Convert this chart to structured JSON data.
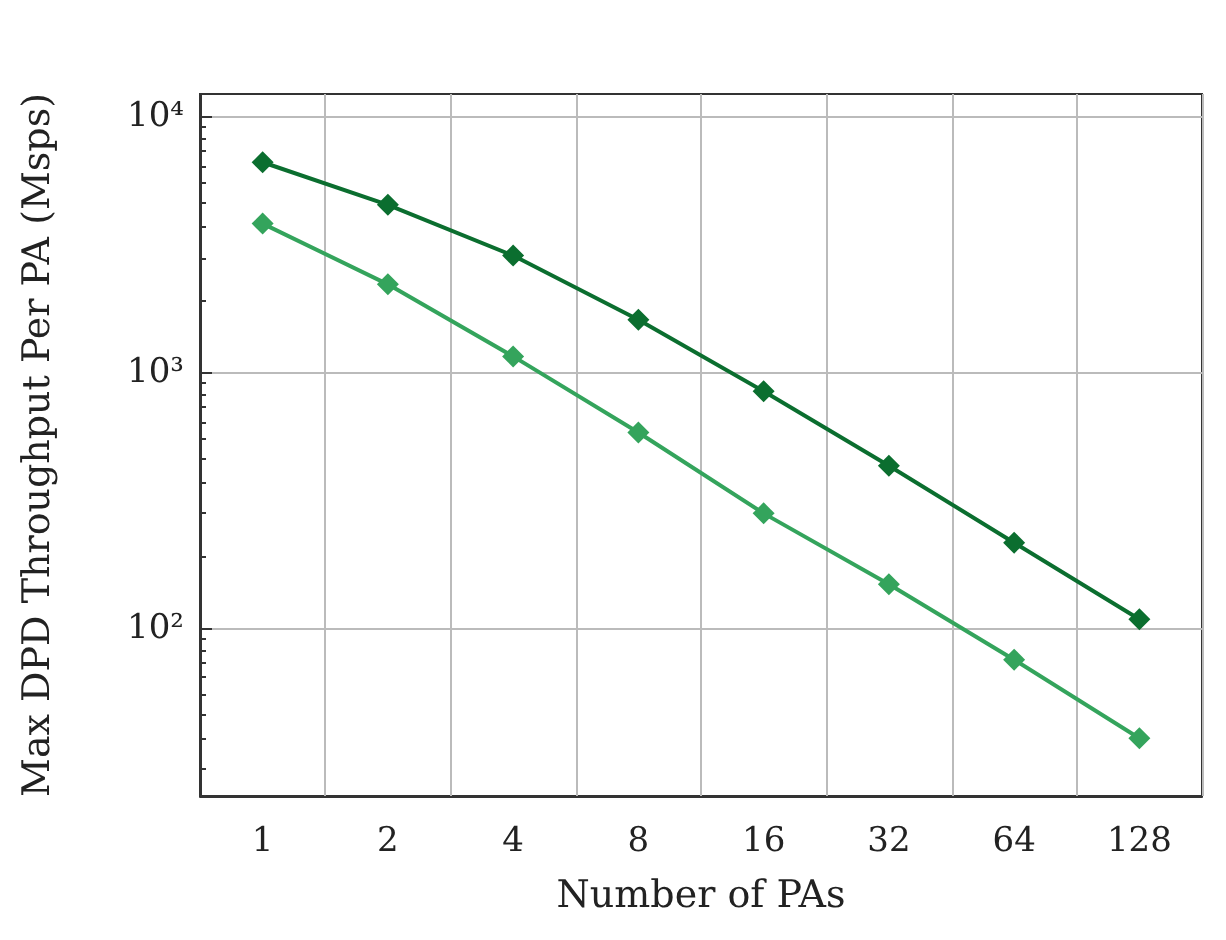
{
  "chart_data": {
    "type": "line",
    "xlabel": "Number of PAs",
    "ylabel": "Max DPD Throughput Per PA (Msps)",
    "categories": [
      "1",
      "2",
      "4",
      "8",
      "16",
      "32",
      "64",
      "128"
    ],
    "series": [
      {
        "color": "#0b6e2f",
        "values": [
          6600,
          4500,
          2850,
          1600,
          840,
          430,
          215,
          108
        ]
      },
      {
        "color": "#34a45c",
        "values": [
          3800,
          2200,
          1150,
          580,
          280,
          148,
          75,
          37
        ]
      }
    ],
    "log": "y",
    "ylim": [
      22,
      12200
    ],
    "yticks": [
      {
        "value": 100,
        "label": "10²"
      },
      {
        "value": 1000,
        "label": "10³"
      },
      {
        "value": 10000,
        "label": "10⁴"
      }
    ],
    "grid": true,
    "marker": "diamond",
    "line_style": "solid"
  }
}
